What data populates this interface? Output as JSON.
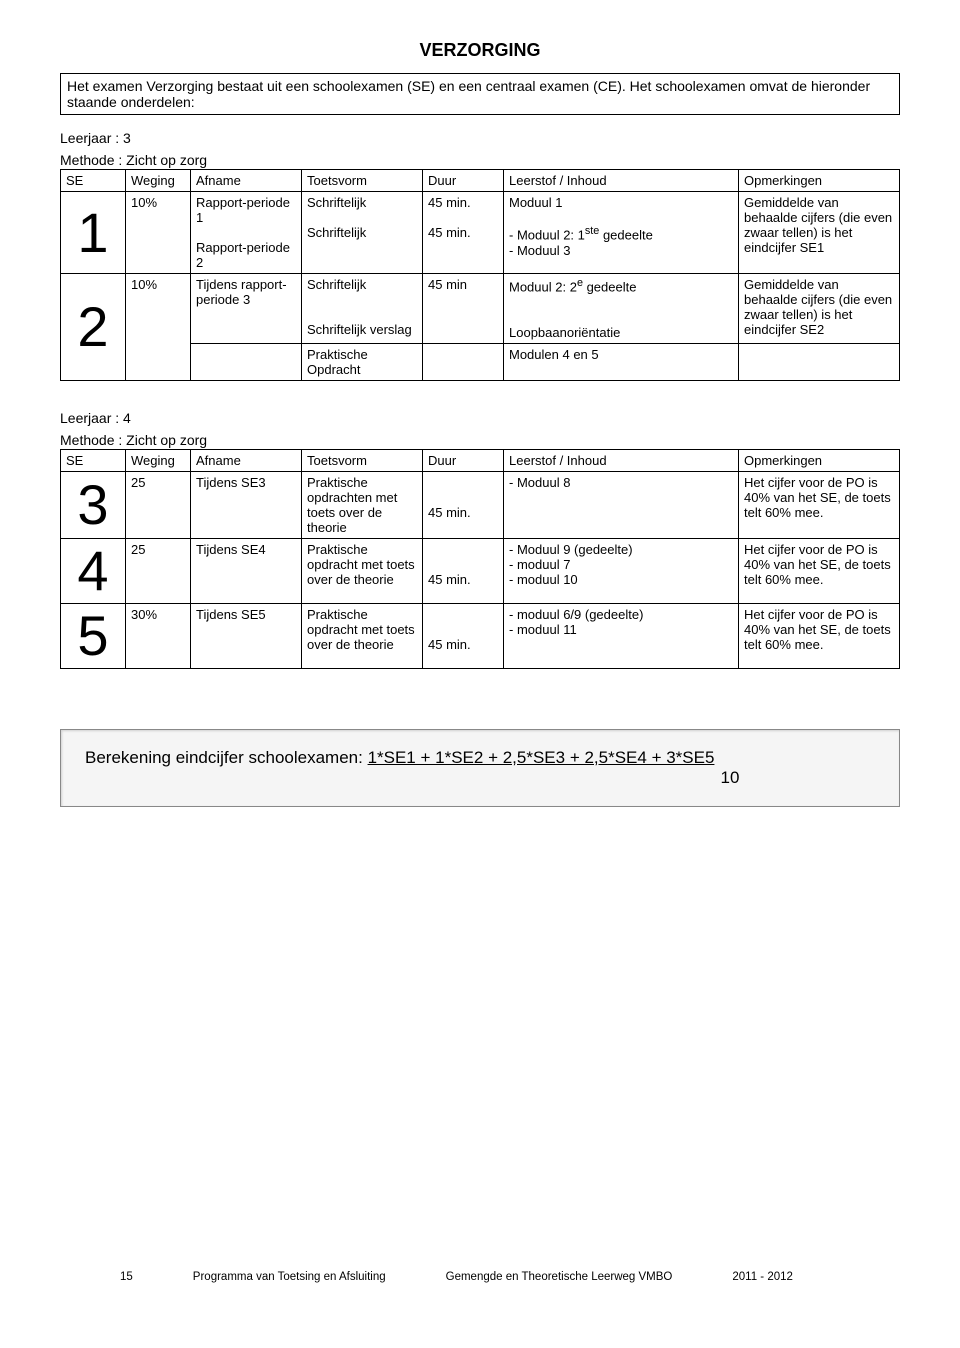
{
  "title": "VERZORGING",
  "intro": "Het examen Verzorging bestaat uit een schoolexamen (SE) en een centraal examen (CE). Het schoolexamen omvat de hieronder staande onderdelen:",
  "section1": {
    "leerjaar": "Leerjaar : 3",
    "methode": "Methode : Zicht op zorg",
    "headers": [
      "SE",
      "Weging",
      "Afname",
      "Toetsvorm",
      "Duur",
      "Leerstof / Inhoud",
      "Opmerkingen"
    ],
    "rows": [
      {
        "se": "1",
        "weging": "10%",
        "afname_lines": [
          "Rapport-periode 1",
          "",
          "Rapport-periode 2"
        ],
        "toets_lines": [
          "Schriftelijk",
          "",
          "Schriftelijk"
        ],
        "duur_lines": [
          "45 min.",
          "",
          "45 min."
        ],
        "leerstof_lines": [
          "Moduul 1",
          "",
          "- Moduul 2: 1<sup>ste</sup> gedeelte",
          "- Moduul 3"
        ],
        "opm": "Gemiddelde van behaalde cijfers (die even zwaar tellen) is het eindcijfer SE1"
      },
      {
        "se": "2",
        "weging": "10%",
        "afname_lines": [
          "Tijdens rapport-periode 3"
        ],
        "toets_lines": [
          "Schriftelijk",
          "",
          "",
          "Schriftelijk verslag"
        ],
        "duur_lines": [
          "45 min"
        ],
        "leerstof_lines": [
          "Moduul 2: 2<sup>e</sup> gedeelte",
          "",
          "",
          "Loopbaanoriëntatie"
        ],
        "opm": "Gemiddelde van behaalde cijfers (die even zwaar tellen) is het eindcijfer SE2"
      },
      {
        "se": "",
        "weging": "",
        "afname_lines": [
          ""
        ],
        "toets_lines": [
          "Praktische Opdracht"
        ],
        "duur_lines": [
          ""
        ],
        "leerstof_lines": [
          "Modulen 4 en 5"
        ],
        "opm": ""
      }
    ]
  },
  "section2": {
    "leerjaar": "Leerjaar : 4",
    "methode": "Methode : Zicht op zorg",
    "headers": [
      "SE",
      "Weging",
      "Afname",
      "Toetsvorm",
      "Duur",
      "Leerstof / Inhoud",
      "Opmerkingen"
    ],
    "rows": [
      {
        "se": "3",
        "weging": "25",
        "afname": "Tijdens SE3",
        "toets": "Praktische opdrachten met toets over de theorie",
        "duur_lines": [
          "",
          "",
          "45 min."
        ],
        "leerstof": "- Moduul 8",
        "opm": "Het cijfer voor de PO is 40% van het SE, de toets telt 60% mee."
      },
      {
        "se": "4",
        "weging": "25",
        "afname": "Tijdens SE4",
        "toets": "Praktische opdracht met toets over de theorie",
        "duur_lines": [
          "",
          "",
          "45 min."
        ],
        "leerstof": "- Moduul 9 (gedeelte)<br>- moduul 7<br>- moduul 10",
        "opm": "Het cijfer voor de PO is 40% van het SE, de toets telt 60% mee."
      },
      {
        "se": "5",
        "weging": "30%",
        "afname": "Tijdens SE5",
        "toets": "Praktische opdracht met toets over de theorie",
        "duur_lines": [
          "",
          "",
          "45 min."
        ],
        "leerstof": "- moduul 6/9 (gedeelte)<br>- moduul 11",
        "opm": "Het cijfer voor de PO is 40% van het SE, de toets telt 60% mee."
      }
    ]
  },
  "calc": {
    "label": "Berekening eindcijfer schoolexamen: ",
    "formula": "1*SE1 + 1*SE2 + 2,5*SE3 + 2,5*SE4 + 3*SE5",
    "denom": "10"
  },
  "footer": {
    "page": "15",
    "left": "Programma van Toetsing en Afsluiting",
    "mid": "Gemengde en Theoretische Leerweg   VMBO",
    "right": "2011 - 2012"
  }
}
